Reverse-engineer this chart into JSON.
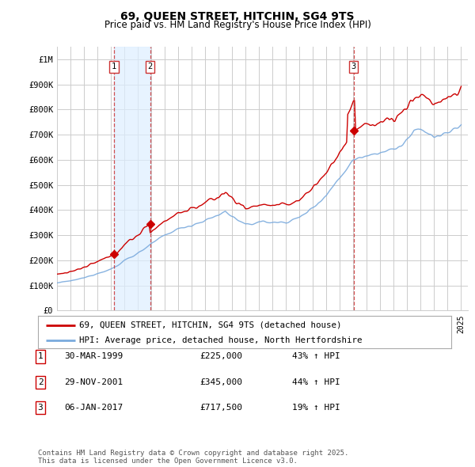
{
  "title": "69, QUEEN STREET, HITCHIN, SG4 9TS",
  "subtitle": "Price paid vs. HM Land Registry's House Price Index (HPI)",
  "legend_line1": "69, QUEEN STREET, HITCHIN, SG4 9TS (detached house)",
  "legend_line2": "HPI: Average price, detached house, North Hertfordshire",
  "transactions": [
    {
      "num": 1,
      "date": "30-MAR-1999",
      "price": 225000,
      "hpi_pct": "43% ↑ HPI",
      "year": 1999.24
    },
    {
      "num": 2,
      "date": "29-NOV-2001",
      "price": 345000,
      "hpi_pct": "44% ↑ HPI",
      "year": 2001.91
    },
    {
      "num": 3,
      "date": "06-JAN-2017",
      "price": 717500,
      "hpi_pct": "19% ↑ HPI",
      "year": 2017.02
    }
  ],
  "footer": "Contains HM Land Registry data © Crown copyright and database right 2025.\nThis data is licensed under the Open Government Licence v3.0.",
  "line_color_red": "#cc0000",
  "line_color_blue": "#7aaadd",
  "vline_color": "#cc3333",
  "shade_color": "#ddeeff",
  "background_color": "#ffffff",
  "grid_color": "#cccccc",
  "ylim": [
    0,
    1050000
  ],
  "yticks": [
    0,
    100000,
    200000,
    300000,
    400000,
    500000,
    600000,
    700000,
    800000,
    900000,
    1000000
  ],
  "ytick_labels": [
    "£0",
    "£100K",
    "£200K",
    "£300K",
    "£400K",
    "£500K",
    "£600K",
    "£700K",
    "£800K",
    "£900K",
    "£1M"
  ],
  "xlim_start": 1995,
  "xlim_end": 2025.5
}
